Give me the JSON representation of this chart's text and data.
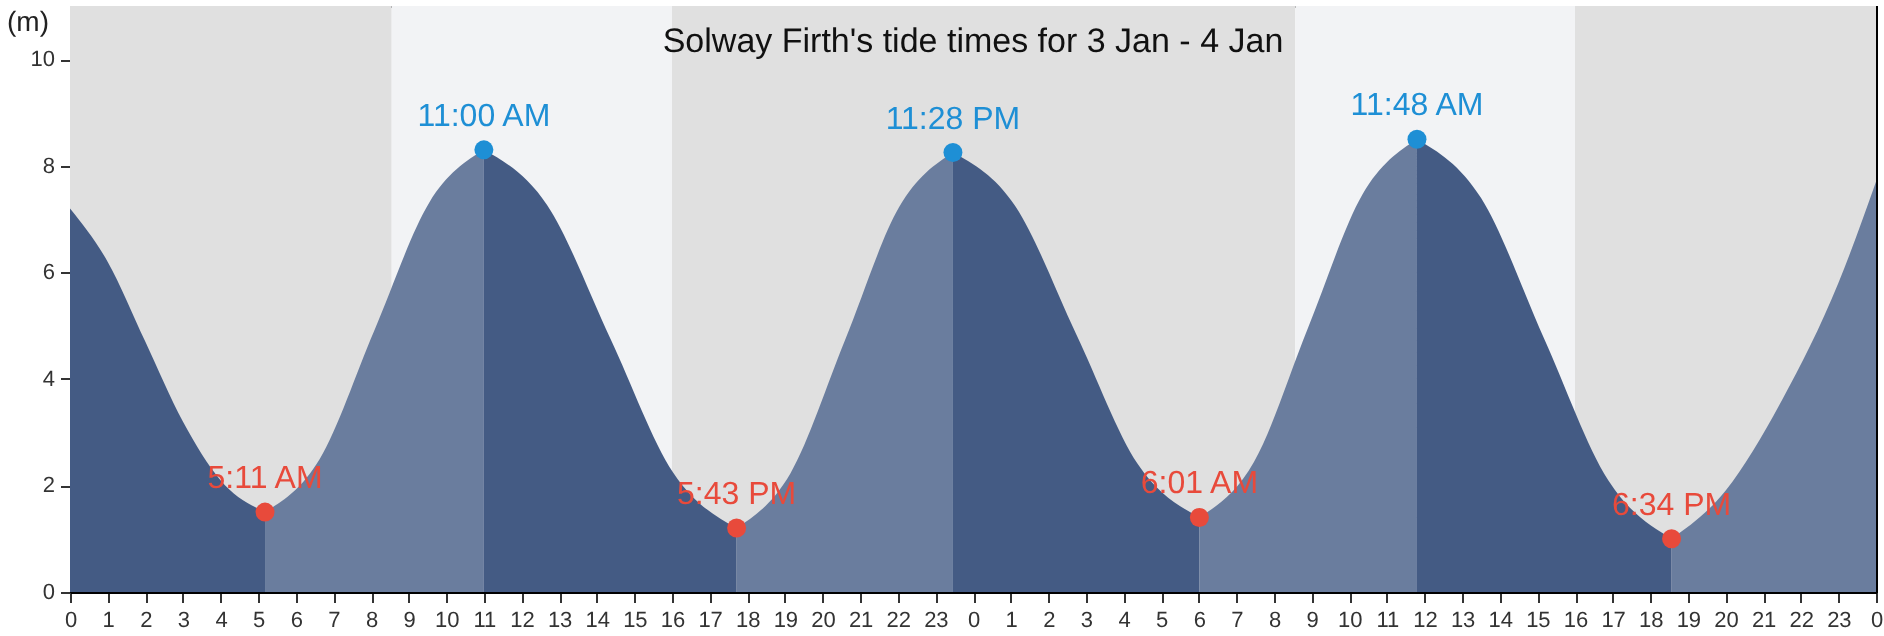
{
  "chart_data": {
    "type": "area",
    "title": "Solway Firth's tide times for 3 Jan - 4 Jan",
    "ylabel": "(m)",
    "xlim": [
      "--01-03T00:00",
      "--01-05T00:00"
    ],
    "xticks": [
      {
        "value": "--01-03T00:00",
        "label": "0"
      },
      {
        "value": "--01-03T01:00",
        "label": "1"
      },
      {
        "value": "--01-03T02:00",
        "label": "2"
      },
      {
        "value": "--01-03T03:00",
        "label": "3"
      },
      {
        "value": "--01-03T04:00",
        "label": "4"
      },
      {
        "value": "--01-03T05:00",
        "label": "5"
      },
      {
        "value": "--01-03T06:00",
        "label": "6"
      },
      {
        "value": "--01-03T07:00",
        "label": "7"
      },
      {
        "value": "--01-03T08:00",
        "label": "8"
      },
      {
        "value": "--01-03T09:00",
        "label": "9"
      },
      {
        "value": "--01-03T10:00",
        "label": "10"
      },
      {
        "value": "--01-03T11:00",
        "label": "11"
      },
      {
        "value": "--01-03T12:00",
        "label": "12"
      },
      {
        "value": "--01-03T13:00",
        "label": "13"
      },
      {
        "value": "--01-03T14:00",
        "label": "14"
      },
      {
        "value": "--01-03T15:00",
        "label": "15"
      },
      {
        "value": "--01-03T16:00",
        "label": "16"
      },
      {
        "value": "--01-03T17:00",
        "label": "17"
      },
      {
        "value": "--01-03T18:00",
        "label": "18"
      },
      {
        "value": "--01-03T19:00",
        "label": "19"
      },
      {
        "value": "--01-03T20:00",
        "label": "20"
      },
      {
        "value": "--01-03T21:00",
        "label": "21"
      },
      {
        "value": "--01-03T22:00",
        "label": "22"
      },
      {
        "value": "--01-03T23:00",
        "label": "23"
      },
      {
        "value": "--01-04T00:00",
        "label": "0"
      },
      {
        "value": "--01-04T01:00",
        "label": "1"
      },
      {
        "value": "--01-04T02:00",
        "label": "2"
      },
      {
        "value": "--01-04T03:00",
        "label": "3"
      },
      {
        "value": "--01-04T04:00",
        "label": "4"
      },
      {
        "value": "--01-04T05:00",
        "label": "5"
      },
      {
        "value": "--01-04T06:00",
        "label": "6"
      },
      {
        "value": "--01-04T07:00",
        "label": "7"
      },
      {
        "value": "--01-04T08:00",
        "label": "8"
      },
      {
        "value": "--01-04T09:00",
        "label": "9"
      },
      {
        "value": "--01-04T10:00",
        "label": "10"
      },
      {
        "value": "--01-04T11:00",
        "label": "11"
      },
      {
        "value": "--01-04T12:00",
        "label": "12"
      },
      {
        "value": "--01-04T13:00",
        "label": "13"
      },
      {
        "value": "--01-04T14:00",
        "label": "14"
      },
      {
        "value": "--01-04T15:00",
        "label": "15"
      },
      {
        "value": "--01-04T16:00",
        "label": "16"
      },
      {
        "value": "--01-04T17:00",
        "label": "17"
      },
      {
        "value": "--01-04T18:00",
        "label": "18"
      },
      {
        "value": "--01-04T19:00",
        "label": "19"
      },
      {
        "value": "--01-04T20:00",
        "label": "20"
      },
      {
        "value": "--01-04T21:00",
        "label": "21"
      },
      {
        "value": "--01-04T22:00",
        "label": "22"
      },
      {
        "value": "--01-04T23:00",
        "label": "23"
      },
      {
        "value": "--01-05T00:00",
        "label": "0"
      }
    ],
    "ylim": [
      0,
      11
    ],
    "yticks": [
      0,
      2,
      4,
      6,
      8,
      10
    ],
    "bands": [
      {
        "axis": "x",
        "from": "--01-03T00:00",
        "to": "--01-03T08:33",
        "color": "#e0e0e0"
      },
      {
        "axis": "x",
        "from": "--01-03T08:33",
        "to": "--01-03T16:00",
        "color": "#f2f3f5"
      },
      {
        "axis": "x",
        "from": "--01-03T16:00",
        "to": "--01-04T08:34",
        "color": "#e0e0e0"
      },
      {
        "axis": "x",
        "from": "--01-04T08:34",
        "to": "--01-04T16:00",
        "color": "#f2f3f5"
      },
      {
        "axis": "x",
        "from": "--01-04T16:00",
        "to": "--01-05T00:00",
        "color": "#e0e0e0"
      }
    ],
    "series": [
      {
        "color": "#445b84",
        "x": [
          "--01-03T00:00",
          "--01-03T01:00",
          "--01-03T02:00",
          "--01-03T03:00",
          "--01-03T04:00",
          "--01-03T05:11"
        ],
        "values": [
          7.2,
          6.2,
          4.7,
          3.2,
          2.1,
          1.5
        ]
      },
      {
        "color": "#6a7d9e",
        "x": [
          "--01-03T05:11",
          "--01-03T06:38",
          "--01-03T08:05",
          "--01-03T09:33",
          "--01-03T11:00"
        ],
        "values": [
          1.5,
          2.49,
          4.9,
          7.31,
          8.3
        ]
      },
      {
        "color": "#445b84",
        "x": [
          "--01-03T11:00",
          "--01-03T12:41",
          "--01-03T14:22",
          "--01-03T16:02",
          "--01-03T17:43"
        ],
        "values": [
          8.3,
          7.26,
          4.75,
          2.24,
          1.2
        ]
      },
      {
        "color": "#6a7d9e",
        "x": [
          "--01-03T17:43",
          "--01-03T19:09",
          "--01-03T20:36",
          "--01-03T22:02",
          "--01-03T23:28"
        ],
        "values": [
          1.2,
          2.23,
          4.73,
          7.22,
          8.25
        ]
      },
      {
        "color": "#445b84",
        "x": [
          "--01-03T23:28",
          "--01-04T01:07",
          "--01-04T02:45",
          "--01-04T04:23",
          "--01-04T06:01"
        ],
        "values": [
          8.25,
          7.25,
          4.83,
          2.4,
          1.4
        ]
      },
      {
        "color": "#6a7d9e",
        "x": [
          "--01-04T06:01",
          "--01-04T07:28",
          "--01-04T08:54",
          "--01-04T10:21",
          "--01-04T11:48"
        ],
        "values": [
          1.4,
          2.44,
          4.95,
          7.46,
          8.5
        ]
      },
      {
        "color": "#445b84",
        "x": [
          "--01-04T11:48",
          "--01-04T13:30",
          "--01-04T15:11",
          "--01-04T16:53",
          "--01-04T18:34"
        ],
        "values": [
          8.5,
          7.4,
          4.75,
          2.1,
          1.0
        ]
      },
      {
        "color": "#6a7d9e",
        "x": [
          "--01-04T18:34",
          "--01-04T20:00",
          "--01-04T21:30",
          "--01-04T23:00",
          "--01-05T00:00"
        ],
        "values": [
          1.0,
          1.9,
          3.6,
          5.8,
          7.7
        ]
      },
      {
        "type": "scatter",
        "color": "#1e8fd5",
        "x": [
          "--01-03T11:00",
          "--01-03T23:28",
          "--01-04T11:48"
        ],
        "values": [
          8.3,
          8.25,
          8.5
        ]
      },
      {
        "type": "scatter",
        "color": "#e84a3b",
        "x": [
          "--01-03T05:11",
          "--01-03T17:43",
          "--01-04T06:01",
          "--01-04T18:34"
        ],
        "values": [
          1.5,
          1.2,
          1.4,
          1.0
        ]
      }
    ],
    "annotations": [
      {
        "text": "5:11 AM",
        "x": "--01-03T05:11",
        "y": 1.5
      },
      {
        "text": "11:00 AM",
        "x": "--01-03T11:00",
        "y": 8.3
      },
      {
        "text": "5:43 PM",
        "x": "--01-03T17:43",
        "y": 1.2
      },
      {
        "text": "11:28 PM",
        "x": "--01-03T23:28",
        "y": 8.25
      },
      {
        "text": "6:01 AM",
        "x": "--01-04T06:01",
        "y": 1.4
      },
      {
        "text": "11:48 AM",
        "x": "--01-04T11:48",
        "y": 8.5
      },
      {
        "text": "6:34 PM",
        "x": "--01-04T18:34",
        "y": 1.0
      }
    ]
  }
}
